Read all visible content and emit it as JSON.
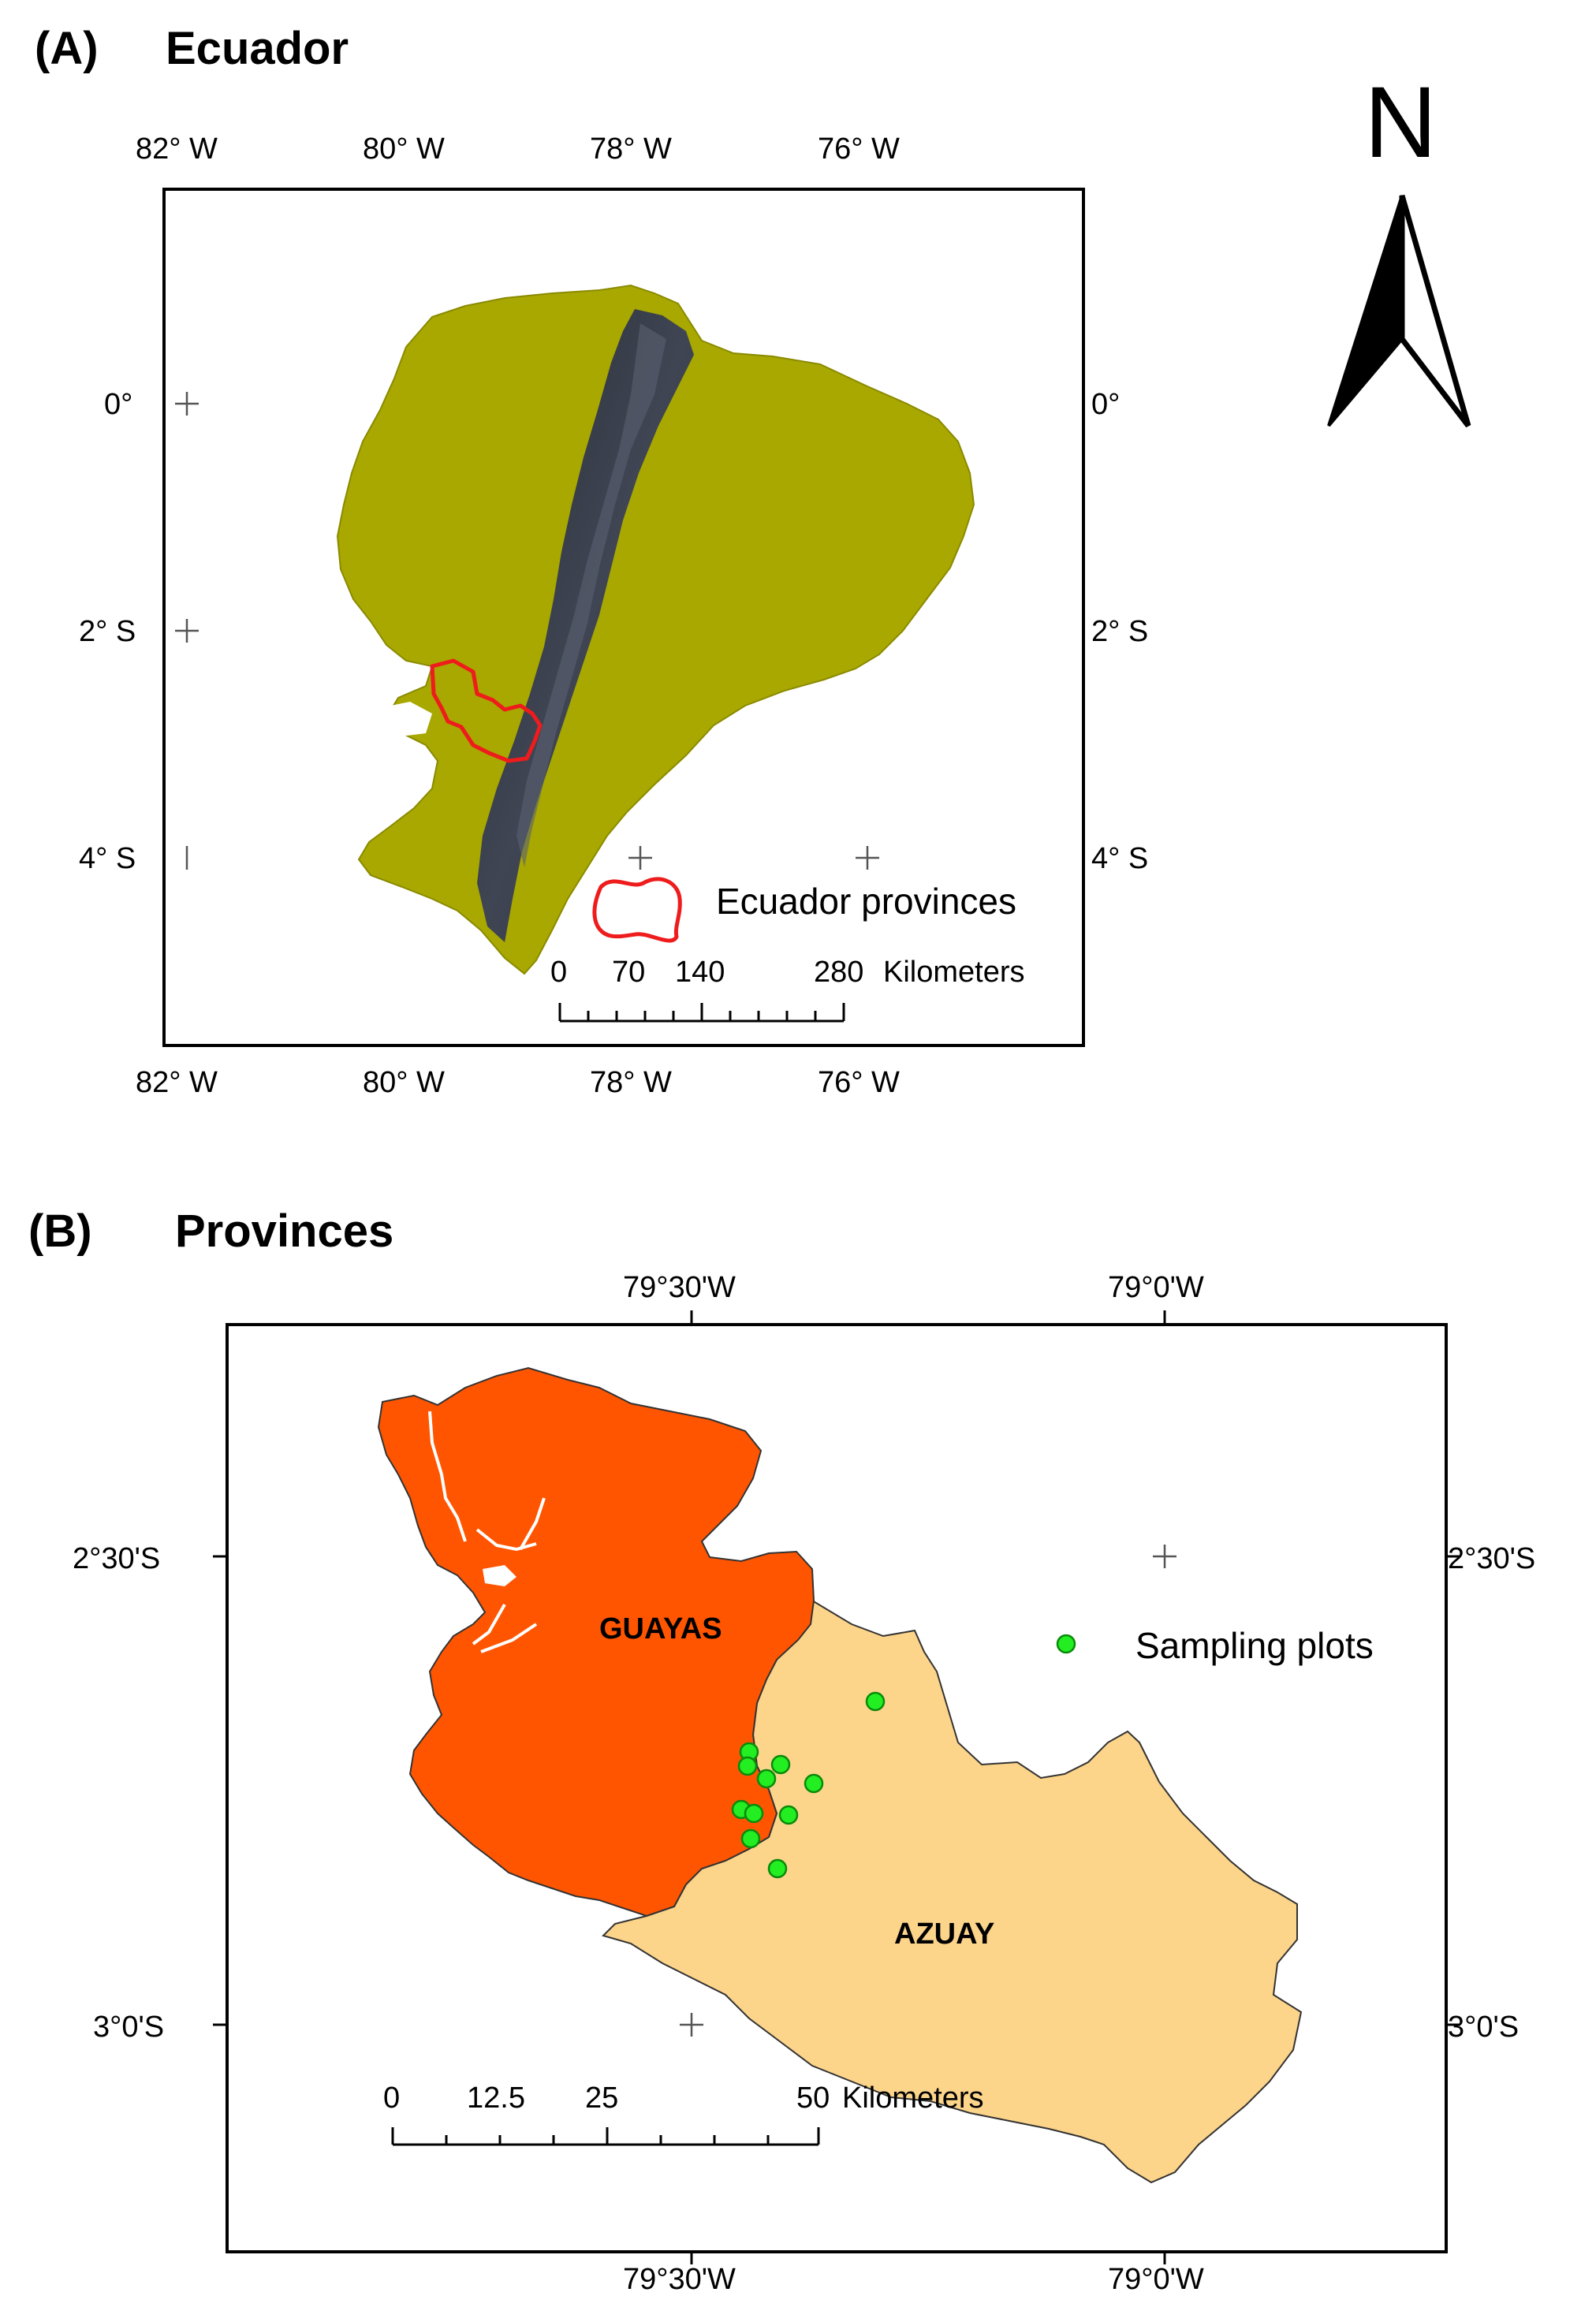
{
  "panel_a": {
    "label": "(A)",
    "title": "Ecuador",
    "top_lon_ticks": [
      "82° W",
      "80° W",
      "78° W",
      "76° W"
    ],
    "bottom_lon_ticks": [
      "82° W",
      "80° W",
      "78° W",
      "76° W"
    ],
    "left_lat_ticks": [
      "0°",
      "2° S",
      "4° S"
    ],
    "right_lat_ticks": [
      "0°",
      "2° S",
      "4° S"
    ],
    "legend_label": "Ecuador provinces",
    "scale_numbers": [
      "0",
      "70",
      "140",
      "280"
    ],
    "scale_unit": "Kilometers",
    "colors": {
      "land": "#a8a800",
      "highland": "#2e3348",
      "outline": "#ee1c1c"
    }
  },
  "north_arrow": {
    "label": "N"
  },
  "panel_b": {
    "label": "(B)",
    "title": "Provinces",
    "top_lon_ticks": [
      "79°30'W",
      "79°0'W"
    ],
    "bottom_lon_ticks": [
      "79°30'W",
      "79°0'W"
    ],
    "left_lat_ticks": [
      "2°30'S",
      "3°0'S"
    ],
    "right_lat_ticks": [
      "2°30'S",
      "3°0'S"
    ],
    "province_names": {
      "guayas": "GUAYAS",
      "azuay": "AZUAY"
    },
    "legend_label": "Sampling plots",
    "scale_numbers": [
      "0",
      "12.5",
      "25",
      "50"
    ],
    "scale_unit": "Kilometers",
    "colors": {
      "guayas": "#ff5500",
      "azuay": "#fcd48a",
      "plots": "#22ee22"
    }
  }
}
